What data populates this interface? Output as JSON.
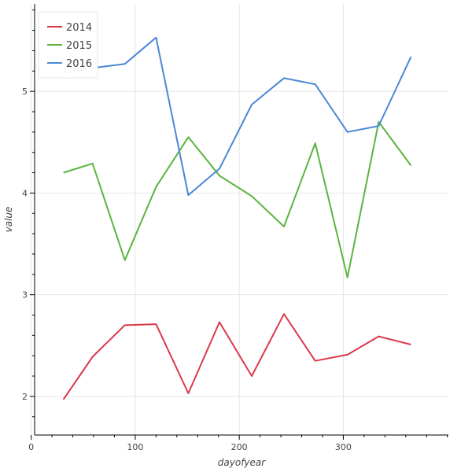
{
  "chart_data": {
    "type": "line",
    "title": "",
    "xlabel": "dayofyear",
    "ylabel": "value",
    "xlim": [
      -2,
      401
    ],
    "ylim": [
      1.62,
      5.86
    ],
    "xticks": [
      0,
      100,
      200,
      300
    ],
    "yticks": [
      2,
      3,
      4,
      5
    ],
    "grid": true,
    "legend_position": "top-left",
    "series": [
      {
        "name": "2014",
        "color": "#d93a49",
        "x": [
          31,
          59,
          90,
          120,
          151,
          181,
          212,
          243,
          273,
          304,
          334,
          365
        ],
        "y": [
          1.97,
          2.39,
          2.7,
          2.71,
          2.03,
          2.73,
          2.2,
          2.81,
          2.35,
          2.41,
          2.59,
          2.51
        ]
      },
      {
        "name": "2015",
        "color": "#5ab43f",
        "x": [
          31,
          59,
          90,
          120,
          151,
          181,
          212,
          243,
          273,
          304,
          334,
          365
        ],
        "y": [
          4.2,
          4.29,
          3.34,
          4.06,
          4.55,
          4.17,
          3.97,
          3.67,
          4.49,
          3.17,
          4.7,
          4.27
        ]
      },
      {
        "name": "2016",
        "color": "#4a88d6",
        "x": [
          31,
          59,
          90,
          120,
          151,
          181,
          212,
          243,
          273,
          304,
          334,
          365
        ],
        "y": [
          5.18,
          5.23,
          5.27,
          5.53,
          3.98,
          4.24,
          4.87,
          5.13,
          5.07,
          4.6,
          4.66,
          5.34
        ]
      }
    ]
  }
}
